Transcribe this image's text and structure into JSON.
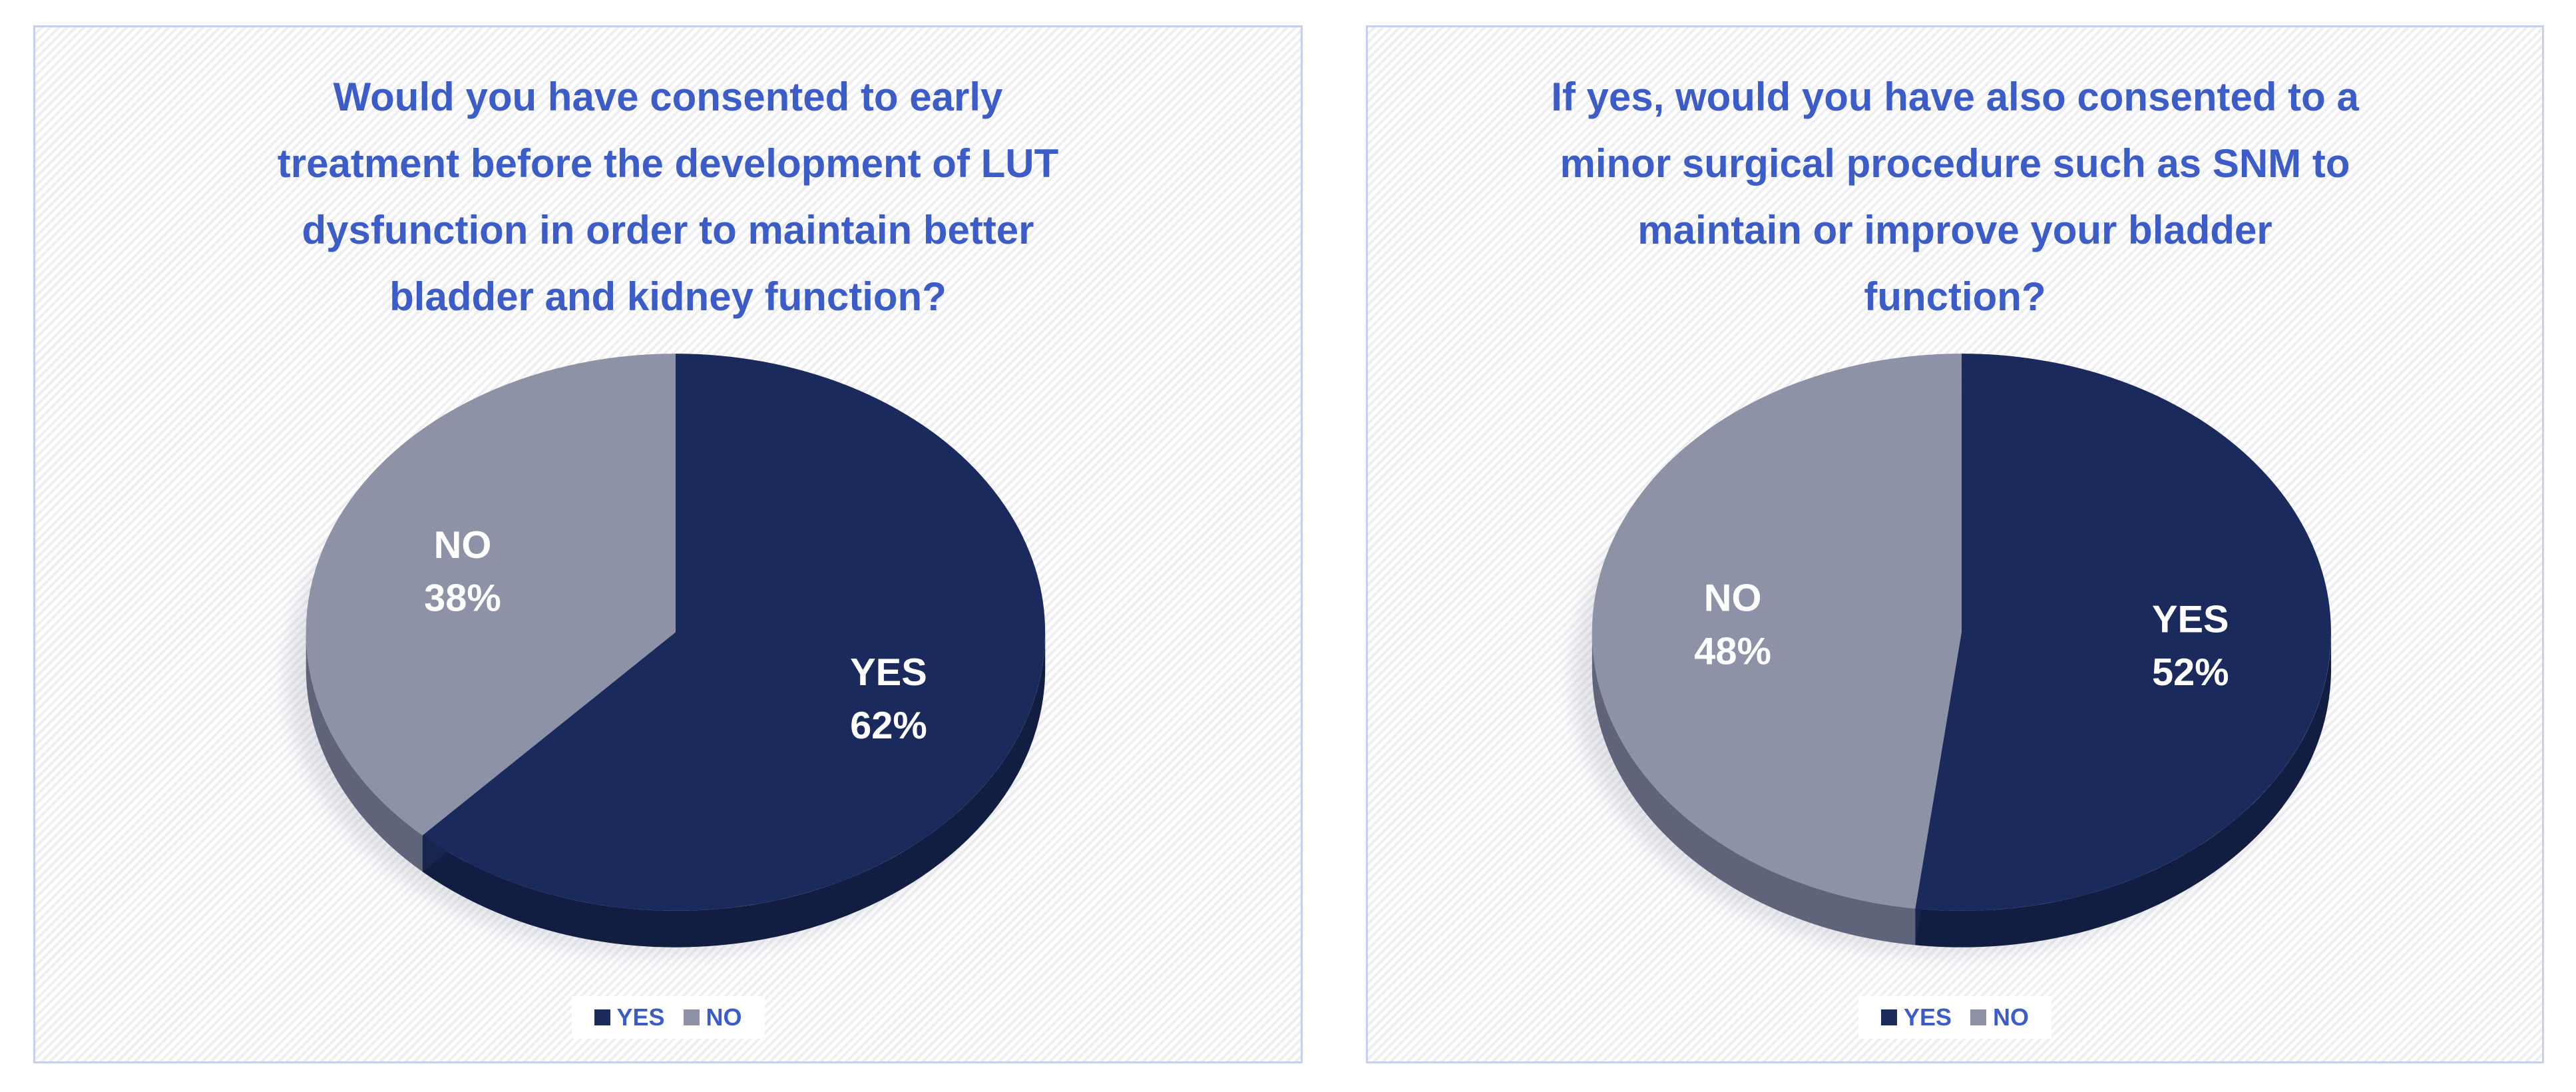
{
  "style": {
    "title_color": "#3c5dc7",
    "legend_text_color": "#3c5dc7",
    "slice_label_color": "#ffffff",
    "panel_border_color": "#c9cfec",
    "panel_stripe_color": "#efeff3",
    "page_background": "#ffffff"
  },
  "charts": [
    {
      "title": "Would you have consented to early treatment before the development of LUT dysfunction in order to maintain better bladder and kidney function?",
      "title_lines": [
        "Would you have consented to early",
        "treatment before the development of LUT",
        "dysfunction in order to maintain better",
        "bladder and kidney function?"
      ],
      "chart_data": {
        "type": "pie",
        "effect": "3d",
        "start_angle_deg": 0,
        "direction": "clockwise",
        "labels": [
          "YES",
          "NO"
        ],
        "values": [
          62,
          38
        ],
        "unit": "%",
        "slice_label_format": "name-newline-percent",
        "colors": [
          "#1b2a5c",
          "#8e92a7"
        ],
        "side_colors": [
          "#121d42",
          "#60647b"
        ],
        "wall_color": "#18254f",
        "legend": {
          "position": "bottom",
          "items": [
            "YES",
            "NO"
          ]
        }
      }
    },
    {
      "title": "If yes, would you have also consented to a minor surgical procedure such as SNM to maintain or improve your bladder function?",
      "title_lines": [
        "If yes, would you have also consented to a",
        "minor surgical procedure such as SNM to",
        "maintain or improve your bladder",
        "function?"
      ],
      "chart_data": {
        "type": "pie",
        "effect": "3d",
        "start_angle_deg": 0,
        "direction": "clockwise",
        "labels": [
          "YES",
          "NO"
        ],
        "values": [
          52,
          48
        ],
        "unit": "%",
        "slice_label_format": "name-newline-percent",
        "colors": [
          "#1b2a5c",
          "#8e92a7"
        ],
        "side_colors": [
          "#121d42",
          "#60647b"
        ],
        "wall_color": "#18254f",
        "legend": {
          "position": "bottom",
          "items": [
            "YES",
            "NO"
          ]
        }
      }
    }
  ]
}
